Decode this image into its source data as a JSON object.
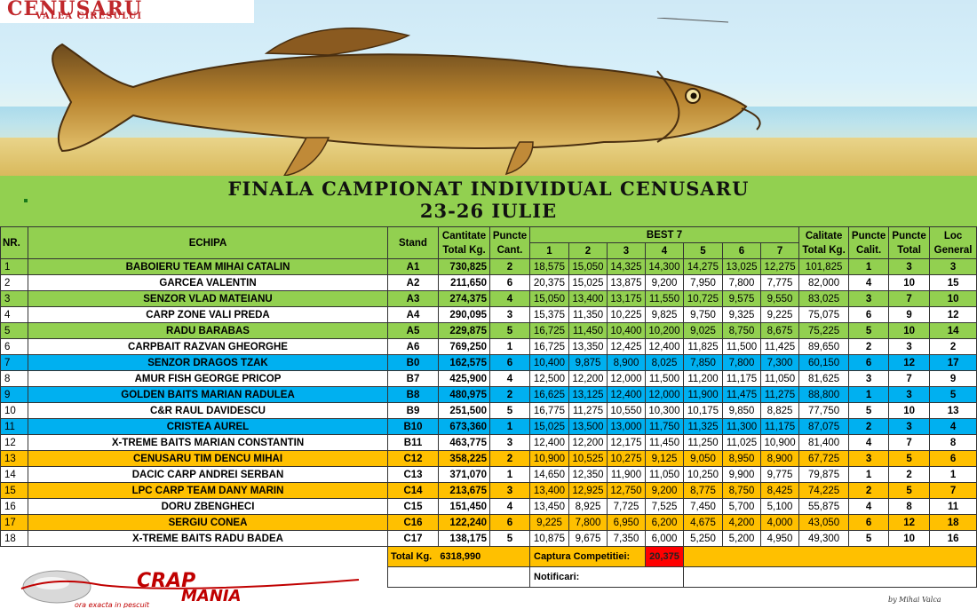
{
  "banner": {
    "logo_title": "CENUSARU",
    "logo_subtitle": "VALEA CIRESULUI",
    "illustration": "carp-fish-icon"
  },
  "title": {
    "line1": "FINALA CAMPIONAT INDIVIDUAL CENUSARU",
    "line2": "23-26 IULIE"
  },
  "headers": {
    "nr": "NR.",
    "echipa": "ECHIPA",
    "stand": "Stand",
    "cantitate": "Cantitate",
    "total_kg": "Total Kg.",
    "puncte": "Puncte",
    "cant": "Cant.",
    "best7": "BEST 7",
    "best_cols": [
      "1",
      "2",
      "3",
      "4",
      "5",
      "6",
      "7"
    ],
    "calitate": "Calitate",
    "calit_total": "Total Kg.",
    "puncte_calit": "Puncte",
    "calit": "Calit.",
    "puncte_total": "Puncte",
    "total": "Total",
    "loc": "Loc",
    "general": "General"
  },
  "rows": [
    {
      "nr": "1",
      "echipa": "BABOIERU TEAM MIHAI CATALIN",
      "stand": "A1",
      "cant": "730,825",
      "pc": "2",
      "best": [
        "18,575",
        "15,050",
        "14,325",
        "14,300",
        "14,275",
        "13,025",
        "12,275"
      ],
      "calitate": "101,825",
      "pcal": "1",
      "ptot": "3",
      "loc": "3",
      "color": "green"
    },
    {
      "nr": "2",
      "echipa": "GARCEA VALENTIN",
      "stand": "A2",
      "cant": "211,650",
      "pc": "6",
      "best": [
        "20,375",
        "15,025",
        "13,875",
        "9,200",
        "7,950",
        "7,800",
        "7,775"
      ],
      "calitate": "82,000",
      "pcal": "4",
      "ptot": "10",
      "loc": "15",
      "color": "white"
    },
    {
      "nr": "3",
      "echipa": "SENZOR VLAD MATEIANU",
      "stand": "A3",
      "cant": "274,375",
      "pc": "4",
      "best": [
        "15,050",
        "13,400",
        "13,175",
        "11,550",
        "10,725",
        "9,575",
        "9,550"
      ],
      "calitate": "83,025",
      "pcal": "3",
      "ptot": "7",
      "loc": "10",
      "color": "green"
    },
    {
      "nr": "4",
      "echipa": "CARP ZONE VALI PREDA",
      "stand": "A4",
      "cant": "290,095",
      "pc": "3",
      "best": [
        "15,375",
        "11,350",
        "10,225",
        "9,825",
        "9,750",
        "9,325",
        "9,225"
      ],
      "calitate": "75,075",
      "pcal": "6",
      "ptot": "9",
      "loc": "12",
      "color": "white"
    },
    {
      "nr": "5",
      "echipa": "RADU BARABAS",
      "stand": "A5",
      "cant": "229,875",
      "pc": "5",
      "best": [
        "16,725",
        "11,450",
        "10,400",
        "10,200",
        "9,025",
        "8,750",
        "8,675"
      ],
      "calitate": "75,225",
      "pcal": "5",
      "ptot": "10",
      "loc": "14",
      "color": "green"
    },
    {
      "nr": "6",
      "echipa": "CARPBAIT RAZVAN GHEORGHE",
      "stand": "A6",
      "cant": "769,250",
      "pc": "1",
      "best": [
        "16,725",
        "13,350",
        "12,425",
        "12,400",
        "11,825",
        "11,500",
        "11,425"
      ],
      "calitate": "89,650",
      "pcal": "2",
      "ptot": "3",
      "loc": "2",
      "color": "white"
    },
    {
      "nr": "7",
      "echipa": "SENZOR DRAGOS TZAK",
      "stand": "B0",
      "cant": "162,575",
      "pc": "6",
      "best": [
        "10,400",
        "9,875",
        "8,900",
        "8,025",
        "7,850",
        "7,800",
        "7,300"
      ],
      "calitate": "60,150",
      "pcal": "6",
      "ptot": "12",
      "loc": "17",
      "color": "blue"
    },
    {
      "nr": "8",
      "echipa": "AMUR FISH GEORGE PRICOP",
      "stand": "B7",
      "cant": "425,900",
      "pc": "4",
      "best": [
        "12,500",
        "12,200",
        "12,000",
        "11,500",
        "11,200",
        "11,175",
        "11,050"
      ],
      "calitate": "81,625",
      "pcal": "3",
      "ptot": "7",
      "loc": "9",
      "color": "white"
    },
    {
      "nr": "9",
      "echipa": "GOLDEN BAITS MARIAN RADULEA",
      "stand": "B8",
      "cant": "480,975",
      "pc": "2",
      "best": [
        "16,625",
        "13,125",
        "12,400",
        "12,000",
        "11,900",
        "11,475",
        "11,275"
      ],
      "calitate": "88,800",
      "pcal": "1",
      "ptot": "3",
      "loc": "5",
      "color": "blue"
    },
    {
      "nr": "10",
      "echipa": "C&R RAUL DAVIDESCU",
      "stand": "B9",
      "cant": "251,500",
      "pc": "5",
      "best": [
        "16,775",
        "11,275",
        "10,550",
        "10,300",
        "10,175",
        "9,850",
        "8,825"
      ],
      "calitate": "77,750",
      "pcal": "5",
      "ptot": "10",
      "loc": "13",
      "color": "white"
    },
    {
      "nr": "11",
      "echipa": "CRISTEA AUREL",
      "stand": "B10",
      "cant": "673,360",
      "pc": "1",
      "best": [
        "15,025",
        "13,500",
        "13,000",
        "11,750",
        "11,325",
        "11,300",
        "11,175"
      ],
      "calitate": "87,075",
      "pcal": "2",
      "ptot": "3",
      "loc": "4",
      "color": "blue"
    },
    {
      "nr": "12",
      "echipa": "X-TREME BAITS MARIAN CONSTANTIN",
      "stand": "B11",
      "cant": "463,775",
      "pc": "3",
      "best": [
        "12,400",
        "12,200",
        "12,175",
        "11,450",
        "11,250",
        "11,025",
        "10,900"
      ],
      "calitate": "81,400",
      "pcal": "4",
      "ptot": "7",
      "loc": "8",
      "color": "white"
    },
    {
      "nr": "13",
      "echipa": "CENUSARU TIM DENCU MIHAI",
      "stand": "C12",
      "cant": "358,225",
      "pc": "2",
      "best": [
        "10,900",
        "10,525",
        "10,275",
        "9,125",
        "9,050",
        "8,950",
        "8,900"
      ],
      "calitate": "67,725",
      "pcal": "3",
      "ptot": "5",
      "loc": "6",
      "color": "orange"
    },
    {
      "nr": "14",
      "echipa": "DACIC CARP ANDREI SERBAN",
      "stand": "C13",
      "cant": "371,070",
      "pc": "1",
      "best": [
        "14,650",
        "12,350",
        "11,900",
        "11,050",
        "10,250",
        "9,900",
        "9,775"
      ],
      "calitate": "79,875",
      "pcal": "1",
      "ptot": "2",
      "loc": "1",
      "color": "white"
    },
    {
      "nr": "15",
      "echipa": "LPC CARP TEAM DANY  MARIN",
      "stand": "C14",
      "cant": "213,675",
      "pc": "3",
      "best": [
        "13,400",
        "12,925",
        "12,750",
        "9,200",
        "8,775",
        "8,750",
        "8,425"
      ],
      "calitate": "74,225",
      "pcal": "2",
      "ptot": "5",
      "loc": "7",
      "color": "orange"
    },
    {
      "nr": "16",
      "echipa": "DORU ZBENGHECI",
      "stand": "C15",
      "cant": "151,450",
      "pc": "4",
      "best": [
        "13,450",
        "8,925",
        "7,725",
        "7,525",
        "7,450",
        "5,700",
        "5,100"
      ],
      "calitate": "55,875",
      "pcal": "4",
      "ptot": "8",
      "loc": "11",
      "color": "white"
    },
    {
      "nr": "17",
      "echipa": "SERGIU CONEA",
      "stand": "C16",
      "cant": "122,240",
      "pc": "6",
      "best": [
        "9,225",
        "7,800",
        "6,950",
        "6,200",
        "4,675",
        "4,200",
        "4,000"
      ],
      "calitate": "43,050",
      "pcal": "6",
      "ptot": "12",
      "loc": "18",
      "color": "orange"
    },
    {
      "nr": "18",
      "echipa": "X-TREME BAITS RADU BADEA",
      "stand": "C17",
      "cant": "138,175",
      "pc": "5",
      "best": [
        "10,875",
        "9,675",
        "7,350",
        "6,000",
        "5,250",
        "5,200",
        "4,950"
      ],
      "calitate": "49,300",
      "pcal": "5",
      "ptot": "10",
      "loc": "16",
      "color": "white"
    }
  ],
  "footer": {
    "total_label": "Total Kg.",
    "total_value": "6318,990",
    "captura_label": "Captura Competitiei:",
    "captura_value": "20,375",
    "notificari_label": "Notificari:",
    "logo_text_1": "CRAP",
    "logo_text_2": "MANIA",
    "logo_tagline": "ora exacta in pescuit",
    "signature": "by Mihai Valca"
  },
  "colors": {
    "green": "#92d050",
    "blue": "#00b0f0",
    "orange": "#ffc000",
    "red": "#ff0000"
  }
}
